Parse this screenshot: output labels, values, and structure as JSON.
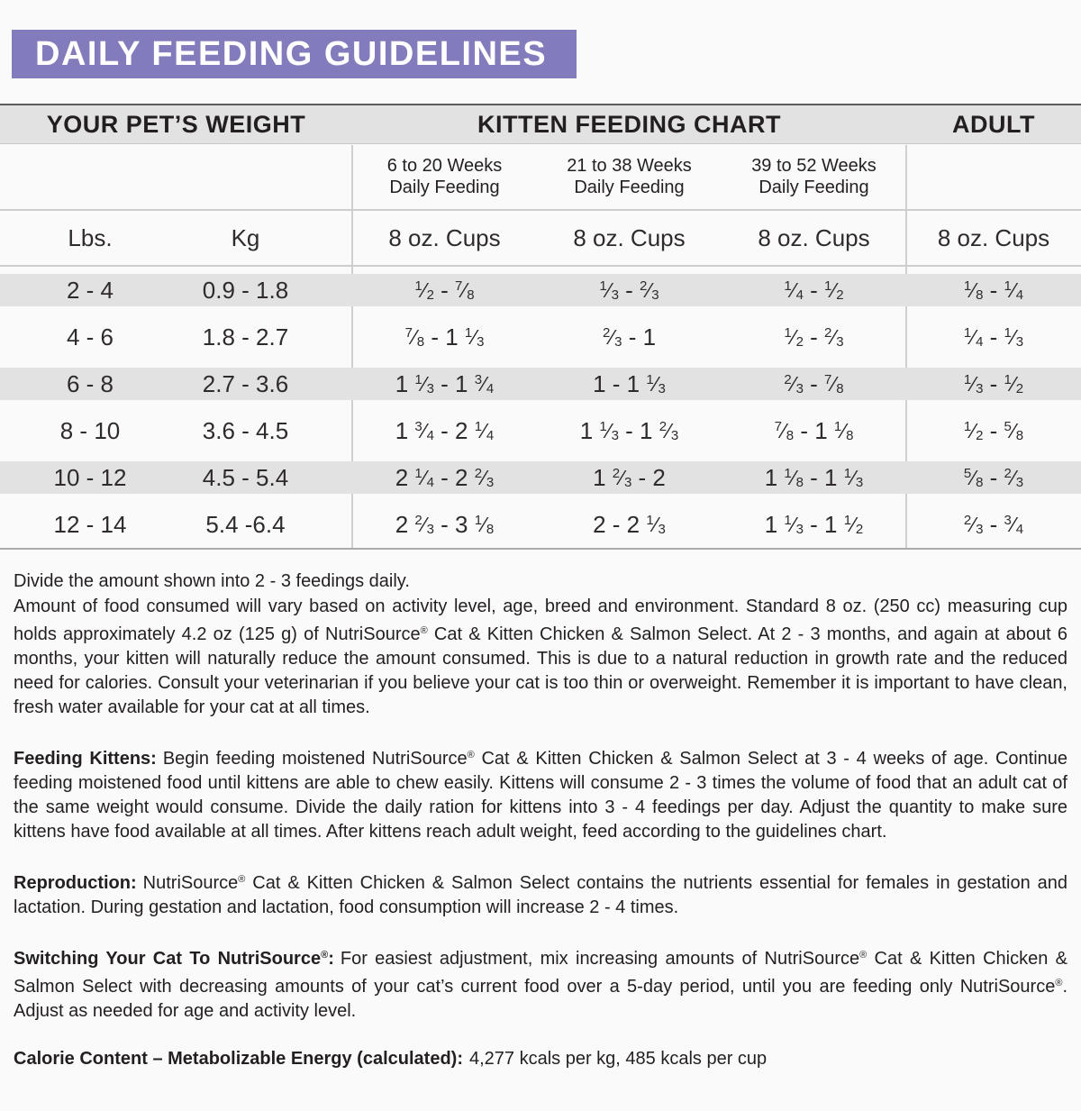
{
  "title": "DAILY FEEDING GUIDELINES",
  "colors": {
    "header_purple": "#837cbc",
    "band_gray": "#e2e2e2",
    "stripe_gray": "#e2e2e2",
    "rule_gray": "#cdcdcd",
    "text": "#231f20"
  },
  "table": {
    "section_headers": {
      "weight": "YOUR PET’S WEIGHT",
      "kitten": "KITTEN FEEDING CHART",
      "adult": "ADULT"
    },
    "week_headers": [
      {
        "range": "6 to 20 Weeks",
        "label": "Daily Feeding"
      },
      {
        "range": "21 to 38 Weeks",
        "label": "Daily Feeding"
      },
      {
        "range": "39 to 52 Weeks",
        "label": "Daily Feeding"
      }
    ],
    "units": {
      "lbs": "Lbs.",
      "kg": "Kg",
      "cups": "8 oz. Cups"
    },
    "rows": [
      {
        "lbs": "2 - 4",
        "kg": "0.9 - 1.8",
        "w1": "1/2 - 7/8",
        "w2": "1/3 - 2/3",
        "w3": "1/4 - 1/2",
        "adult": "1/8 - 1/4"
      },
      {
        "lbs": "4 - 6",
        "kg": "1.8 - 2.7",
        "w1": "7/8 - 1 1/3",
        "w2": "2/3 - 1",
        "w3": "1/2 - 2/3",
        "adult": "1/4 - 1/3"
      },
      {
        "lbs": "6 - 8",
        "kg": "2.7 - 3.6",
        "w1": "1 1/3 - 1 3/4",
        "w2": "1 - 1 1/3",
        "w3": "2/3 - 7/8",
        "adult": "1/3 - 1/2"
      },
      {
        "lbs": "8 - 10",
        "kg": "3.6 - 4.5",
        "w1": "1 3/4 - 2 1/4",
        "w2": "1 1/3 - 1 2/3",
        "w3": "7/8 - 1 1/8",
        "adult": "1/2 - 5/8"
      },
      {
        "lbs": "10 - 12",
        "kg": "4.5 - 5.4",
        "w1": "2 1/4 - 2 2/3",
        "w2": "1 2/3 - 2",
        "w3": "1 1/8 - 1 1/3",
        "adult": "5/8 - 2/3"
      },
      {
        "lbs": "12 - 14",
        "kg": "5.4 -6.4",
        "w1": "2 2/3 - 3 1/8",
        "w2": "2 - 2 1/3",
        "w3": "1 1/3 - 1 1/2",
        "adult": "2/3 - 3/4"
      }
    ]
  },
  "notes": {
    "divide_line": "Divide the amount shown into 2 - 3 feedings daily.",
    "paragraphs": [
      {
        "bold": "",
        "text": "Amount of food consumed will vary based on activity level, age, breed and environment. Standard 8 oz. (250 cc) measuring cup holds approximately 4.2 oz (125 g) of NutriSource® Cat & Kitten Chicken & Salmon Select. At 2 - 3 months, and again at about 6 months, your kitten will naturally reduce the amount consumed. This is due to a natural reduction in growth rate and the reduced need for calories. Consult your veterinarian if you believe your cat is too thin or overweight. Remember it is important to have clean, fresh water available for your cat at all times."
      },
      {
        "bold": "Feeding Kittens:",
        "text": "Begin feeding moistened NutriSource® Cat & Kitten Chicken & Salmon Select at 3 - 4 weeks of age. Continue feeding moistened food until kittens are able to chew easily. Kittens will consume 2 - 3 times the volume of food that an adult cat of the same weight would consume. Divide the daily ration for kittens into 3 - 4 feedings per day. Adjust the quantity to make sure kittens have food available at all times. After kittens reach adult weight, feed according to the guidelines chart."
      },
      {
        "bold": "Reproduction:",
        "text": "NutriSource® Cat & Kitten Chicken & Salmon Select contains the nutrients essential for females in gestation and lactation. During gestation and lactation, food consumption will increase 2 - 4 times."
      },
      {
        "bold": "Switching Your Cat To NutriSource®:",
        "text": "For easiest adjustment, mix increasing amounts of NutriSource® Cat & Kitten Chicken & Salmon Select with decreasing amounts of your cat’s current food over a 5-day period, until you are feeding only NutriSource®. Adjust as needed for age and activity level."
      },
      {
        "bold": "Calorie Content – Metabolizable Energy (calculated):",
        "text": "4,277 kcals per kg, 485 kcals per cup"
      }
    ]
  }
}
